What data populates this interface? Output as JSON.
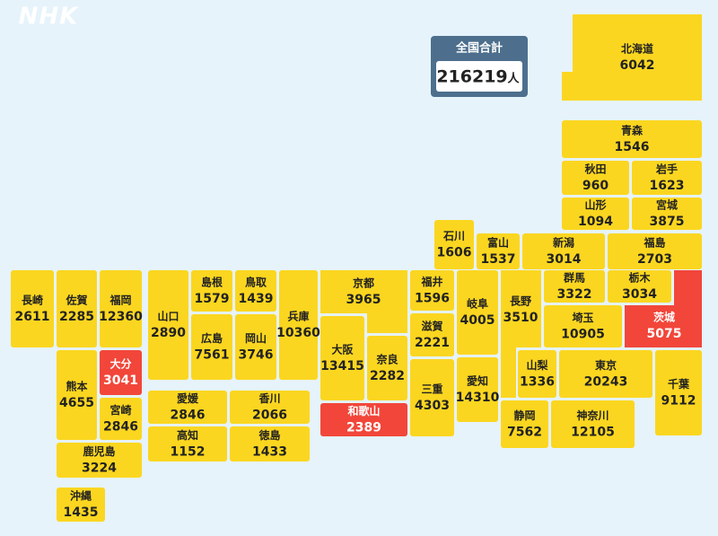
{
  "brand": "NHK",
  "total": {
    "label": "全国合計",
    "value": 216219,
    "unit": "人"
  },
  "prefectures": [
    {
      "name": "北海道",
      "value": 6042
    },
    {
      "name": "青森",
      "value": 1546
    },
    {
      "name": "秋田",
      "value": 960
    },
    {
      "name": "岩手",
      "value": 1623
    },
    {
      "name": "山形",
      "value": 1094
    },
    {
      "name": "宮城",
      "value": 3875
    },
    {
      "name": "石川",
      "value": 1606
    },
    {
      "name": "富山",
      "value": 1537
    },
    {
      "name": "新潟",
      "value": 3014
    },
    {
      "name": "福島",
      "value": 2703
    },
    {
      "name": "長崎",
      "value": 2611
    },
    {
      "name": "佐賀",
      "value": 2285
    },
    {
      "name": "福岡",
      "value": 12360
    },
    {
      "name": "山口",
      "value": 2890
    },
    {
      "name": "島根",
      "value": 1579
    },
    {
      "name": "鳥取",
      "value": 1439
    },
    {
      "name": "兵庫",
      "value": 10360
    },
    {
      "name": "広島",
      "value": 7561
    },
    {
      "name": "岡山",
      "value": 3746
    },
    {
      "name": "京都",
      "value": 3965
    },
    {
      "name": "福井",
      "value": 1596
    },
    {
      "name": "滋賀",
      "value": 2221
    },
    {
      "name": "三重",
      "value": 4303
    },
    {
      "name": "大阪",
      "value": 13415
    },
    {
      "name": "奈良",
      "value": 2282
    },
    {
      "name": "岐阜",
      "value": 4005
    },
    {
      "name": "愛知",
      "value": 14310
    },
    {
      "name": "長野",
      "value": 3510
    },
    {
      "name": "群馬",
      "value": 3322
    },
    {
      "name": "栃木",
      "value": 3034
    },
    {
      "name": "茨城",
      "value": 5075,
      "highlight": true
    },
    {
      "name": "埼玉",
      "value": 10905
    },
    {
      "name": "山梨",
      "value": 1336
    },
    {
      "name": "東京",
      "value": 20243
    },
    {
      "name": "千葉",
      "value": 9112
    },
    {
      "name": "静岡",
      "value": 7562
    },
    {
      "name": "神奈川",
      "value": 12105
    },
    {
      "name": "熊本",
      "value": 4655
    },
    {
      "name": "大分",
      "value": 3041,
      "highlight": true
    },
    {
      "name": "宮崎",
      "value": 2846
    },
    {
      "name": "鹿児島",
      "value": 3224
    },
    {
      "name": "沖縄",
      "value": 1435
    },
    {
      "name": "和歌山",
      "value": 2389,
      "highlight": true
    },
    {
      "name": "愛媛",
      "value": 2846
    },
    {
      "name": "香川",
      "value": 2066
    },
    {
      "name": "高知",
      "value": 1152
    },
    {
      "name": "徳島",
      "value": 1433
    }
  ]
}
